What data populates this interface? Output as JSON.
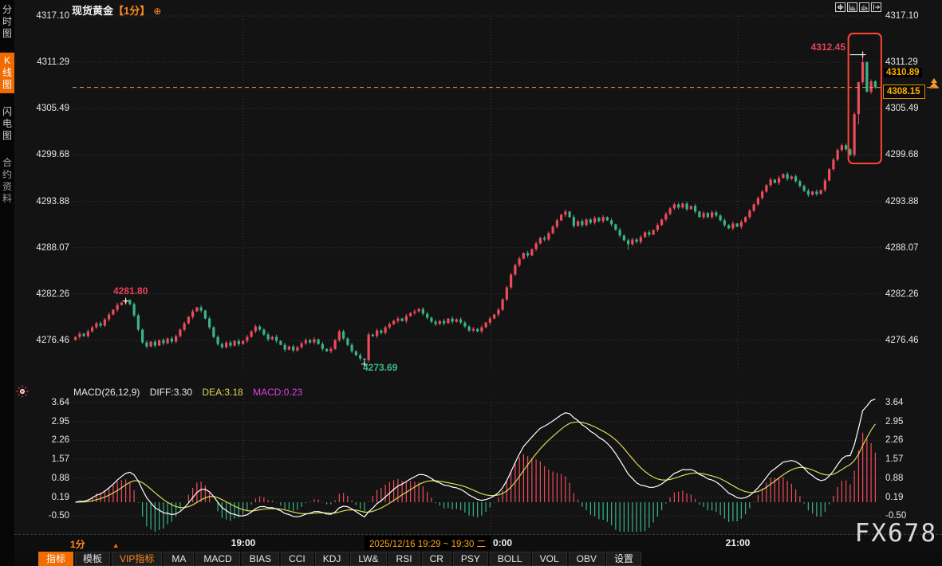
{
  "header": {
    "title": "现货黄金",
    "period_tag": "【1分】",
    "expand_icon_glyph": "⊕"
  },
  "sidebar": {
    "items": [
      {
        "label": "分时图",
        "selected": false
      },
      {
        "label": "K线图",
        "selected": true
      },
      {
        "label": "闪电图",
        "selected": false
      },
      {
        "label": "合约资料",
        "selected": false
      }
    ]
  },
  "toolbar_icons": [
    {
      "name": "pan-crosshair"
    },
    {
      "name": "axis-left-chart"
    },
    {
      "name": "cursor-chart"
    },
    {
      "name": "shift-right-chart"
    }
  ],
  "main_chart": {
    "annotations": {
      "session_high": "4312.45",
      "swing_high": "4281.80",
      "swing_low": "4273.69"
    },
    "prev_level_label": "4310.89",
    "last_price_label": "4308.15"
  },
  "macd": {
    "header": {
      "name": "MACD(26,12,9)",
      "diff_label": "DIFF:3.30",
      "dea_label": "DEA:3.18",
      "macd_label": "MACD:0.23"
    }
  },
  "time_axis": {
    "period": "1分",
    "arrow": "▲",
    "label_19": "19:00",
    "label_20_partial": "0:00",
    "label_21": "21:00",
    "tooltip": "2025/12/16 19:29 ~ 19:30 二"
  },
  "watermark": "FX678",
  "bottom_tabs": [
    {
      "label": "指标",
      "state": "selected"
    },
    {
      "label": "模板",
      "state": ""
    },
    {
      "label": "VIP指标",
      "state": "vip"
    },
    {
      "label": "MA",
      "state": ""
    },
    {
      "label": "MACD",
      "state": ""
    },
    {
      "label": "BIAS",
      "state": ""
    },
    {
      "label": "CCI",
      "state": ""
    },
    {
      "label": "KDJ",
      "state": ""
    },
    {
      "label": "LW&",
      "state": ""
    },
    {
      "label": "RSI",
      "state": ""
    },
    {
      "label": "CR",
      "state": ""
    },
    {
      "label": "PSY",
      "state": ""
    },
    {
      "label": "BOLL",
      "state": ""
    },
    {
      "label": "VOL",
      "state": ""
    },
    {
      "label": "OBV",
      "state": ""
    },
    {
      "label": "设置",
      "state": ""
    }
  ],
  "colors": {
    "up": "#ef4b5c",
    "down": "#39b588",
    "grid": "#3c3c3c",
    "axis_text": "#e6e6e6",
    "accent_orange": "#f06c00",
    "amber": "#ffae00",
    "dashed_line": "#ff9b3d",
    "highlight_box": "#ff4633",
    "diff_line": "#ffffff",
    "dea_line": "#d9d957",
    "macd_text": "#e23de2",
    "annotation_red": "#e8415a",
    "annotation_green": "#3cba8e"
  },
  "chart_data": {
    "type": "candlestick",
    "instrument": "现货黄金",
    "interval": "1分",
    "title": "现货黄金【1分】",
    "price_axis": [
      4317.1,
      4311.29,
      4305.49,
      4299.68,
      4293.88,
      4288.07,
      4282.26,
      4276.46
    ],
    "x_time_labels": [
      "19:00",
      "20:00",
      "21:00"
    ],
    "session_high": 4312.45,
    "swing_high": 4281.8,
    "swing_low": 4273.69,
    "last_price": 4308.15,
    "prev_level": 4310.89,
    "first_open": 4276.5,
    "closes": [
      4276.9,
      4277.3,
      4277.0,
      4277.6,
      4278.1,
      4278.6,
      4278.3,
      4279.1,
      4279.7,
      4280.3,
      4280.9,
      4281.2,
      4281.5,
      4281.0,
      4279.6,
      4277.8,
      4276.2,
      4275.7,
      4276.3,
      4275.8,
      4276.5,
      4276.1,
      4276.7,
      4276.3,
      4277.0,
      4277.8,
      4278.6,
      4279.4,
      4280.1,
      4280.6,
      4280.2,
      4279.2,
      4278.1,
      4276.9,
      4276.0,
      4275.6,
      4276.2,
      4275.8,
      4276.4,
      4276.0,
      4276.4,
      4276.9,
      4277.6,
      4278.2,
      4277.8,
      4277.2,
      4276.6,
      4276.9,
      4276.4,
      4275.9,
      4275.3,
      4275.7,
      4275.2,
      4275.6,
      4276.1,
      4276.5,
      4276.2,
      4276.6,
      4276.0,
      4275.4,
      4275.1,
      4275.4,
      4276.5,
      4277.6,
      4276.7,
      4275.9,
      4275.1,
      4274.6,
      4274.2,
      4274.0,
      4277.2,
      4277.0,
      4277.7,
      4277.4,
      4278.1,
      4278.5,
      4278.9,
      4279.2,
      4278.9,
      4279.5,
      4279.9,
      4280.1,
      4280.4,
      4279.8,
      4279.3,
      4278.8,
      4278.5,
      4278.9,
      4278.6,
      4279.2,
      4278.8,
      4279.1,
      4278.7,
      4278.2,
      4277.7,
      4277.9,
      4277.6,
      4278.1,
      4278.7,
      4279.2,
      4279.7,
      4280.3,
      4281.6,
      4283.1,
      4284.7,
      4285.9,
      4286.7,
      4287.4,
      4287.1,
      4287.9,
      4288.6,
      4289.3,
      4289.1,
      4289.9,
      4290.7,
      4291.5,
      4292.2,
      4292.6,
      4291.9,
      4290.8,
      4291.4,
      4290.9,
      4291.6,
      4291.2,
      4291.8,
      4291.4,
      4291.9,
      4291.5,
      4291.0,
      4290.3,
      4289.6,
      4289.0,
      4288.5,
      4289.1,
      4288.8,
      4289.4,
      4290.0,
      4289.7,
      4290.3,
      4290.9,
      4291.6,
      4292.3,
      4293.0,
      4293.5,
      4293.1,
      4293.6,
      4292.9,
      4293.3,
      4292.6,
      4291.9,
      4292.4,
      4291.9,
      4292.5,
      4292.1,
      4291.5,
      4290.9,
      4290.5,
      4291.1,
      4290.7,
      4291.3,
      4291.9,
      4292.7,
      4293.5,
      4294.3,
      4295.1,
      4295.9,
      4296.6,
      4296.2,
      4296.8,
      4297.3,
      4296.7,
      4297.0,
      4296.4,
      4295.8,
      4295.2,
      4294.7,
      4295.1,
      4294.8,
      4295.3,
      4296.5,
      4297.9,
      4299.1,
      4300.3,
      4300.9,
      4300.4,
      4299.7,
      4304.8,
      4308.8,
      4311.3,
      4307.6,
      4308.9,
      4308.15
    ],
    "wick_overrides": {
      "12": {
        "high": 4281.8
      },
      "69": {
        "low": 4273.69
      },
      "132": {
        "low": 4287.8
      },
      "187": {
        "low": 4303.5
      },
      "188": {
        "high": 4312.45
      }
    },
    "marker_indices": {
      "swing_high": 12,
      "swing_low": 69,
      "session_high": 188
    },
    "highlight_box_candles": [
      186,
      191
    ],
    "indicator": {
      "type": "MACD",
      "params": [
        26,
        12,
        9
      ],
      "diff": 3.3,
      "dea": 3.18,
      "macd": 0.23,
      "axis": [
        3.64,
        2.95,
        2.26,
        1.57,
        0.88,
        0.19,
        -0.5
      ],
      "hist_scale": "2x(DIFF-DEA)"
    }
  }
}
